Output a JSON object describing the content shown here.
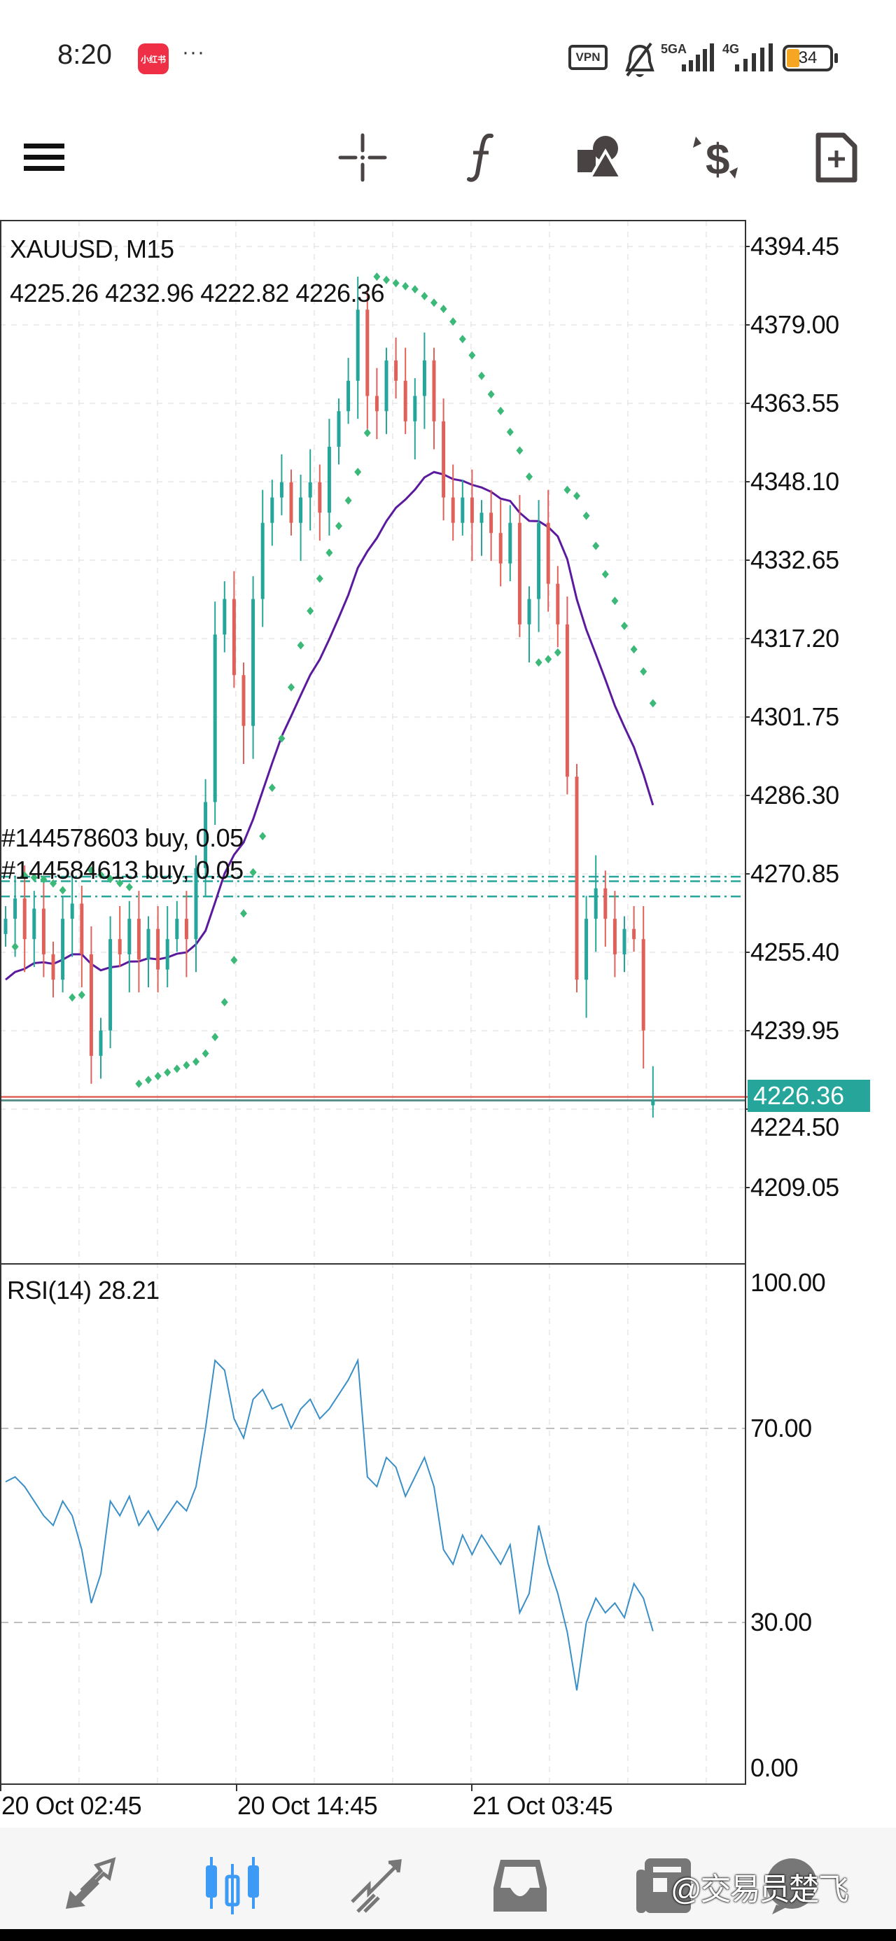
{
  "status_bar": {
    "time": "8:20",
    "app_badge": "小红书",
    "more": "···",
    "vpn": "VPN",
    "network_1": "5GA",
    "network_2": "4G",
    "battery": "34"
  },
  "toolbar": {
    "icons": [
      "menu-icon",
      "crosshair-icon",
      "indicators-icon",
      "objects-icon",
      "trade-icon",
      "new-order-icon"
    ]
  },
  "chart_header": {
    "symbol": "XAUUSD, M15",
    "ohlc": "4225.26 4232.96 4222.82 4226.36"
  },
  "orders": [
    {
      "label": "#144578603 buy, 0.05",
      "price": 4270.3
    },
    {
      "label": "#144584613 buy, 0.05",
      "price": 4269.4
    },
    {
      "price": 4266.4
    }
  ],
  "current_price": "4226.36",
  "rsi_label": "RSI(14) 28.21",
  "colors": {
    "bull": "#26a69a",
    "bear": "#e0605a",
    "ma": "#5b1a9e",
    "sar": "#3cb878",
    "rsi": "#3a8fc7",
    "order_line": "#26a69a",
    "active_nav": "#3d9bf5"
  },
  "chart_data": [
    {
      "type": "candlestick",
      "title": "XAUUSD, M15",
      "y_ticks": [
        "4394.45",
        "4379.00",
        "4363.55",
        "4348.10",
        "4332.65",
        "4317.20",
        "4301.75",
        "4286.30",
        "4270.85",
        "4255.40",
        "4239.95",
        "4224.50",
        "4209.05"
      ],
      "ylim": [
        4209.05,
        4394.45
      ],
      "x_ticks": [
        "20 Oct 02:45",
        "20 Oct 14:45",
        "21 Oct 03:45"
      ],
      "grid": true,
      "closes": [
        4262,
        4266,
        4258,
        4264,
        4255,
        4250,
        4262,
        4265,
        4255,
        4235,
        4240,
        4258,
        4255,
        4262,
        4254,
        4260,
        4252,
        4258,
        4262,
        4258,
        4272,
        4285,
        4318,
        4325,
        4310,
        4300,
        4325,
        4340,
        4345,
        4348,
        4340,
        4345,
        4348,
        4342,
        4355,
        4362,
        4368,
        4382,
        4365,
        4362,
        4372,
        4368,
        4360,
        4365,
        4372,
        4360,
        4345,
        4340,
        4345,
        4340,
        4342,
        4338,
        4332,
        4340,
        4320,
        4325,
        4340,
        4328,
        4320,
        4290,
        4250,
        4262,
        4268,
        4262,
        4255,
        4260,
        4258,
        4240,
        4226.36
      ],
      "last_bar": {
        "open": 4225.26,
        "high": 4232.96,
        "low": 4222.82,
        "close": 4226.36
      },
      "overlays": [
        "moving-average",
        "parabolic-sar"
      ]
    },
    {
      "type": "line",
      "title": "RSI(14) 28.21",
      "ylim": [
        0,
        100
      ],
      "y_ticks": [
        "100.00",
        "70.00",
        "30.00",
        "0.00"
      ],
      "levels": [
        70,
        30
      ],
      "values": [
        59,
        60,
        58,
        55,
        52,
        50,
        55,
        52,
        45,
        34,
        40,
        55,
        52,
        56,
        50,
        53,
        49,
        52,
        55,
        53,
        58,
        70,
        84,
        82,
        72,
        68,
        76,
        78,
        74,
        75,
        70,
        74,
        76,
        72,
        74,
        77,
        80,
        84,
        60,
        58,
        64,
        62,
        56,
        60,
        64,
        58,
        45,
        42,
        48,
        44,
        48,
        45,
        42,
        46,
        32,
        36,
        50,
        42,
        36,
        28,
        16,
        30,
        35,
        32,
        34,
        31,
        38,
        35,
        28.21
      ]
    }
  ],
  "bottom_nav": {
    "items": [
      "quotes-icon",
      "chart-icon",
      "trade-icon",
      "history-icon",
      "news-icon",
      "messages-icon"
    ],
    "active": 1
  },
  "watermark": "@交易员楚飞"
}
